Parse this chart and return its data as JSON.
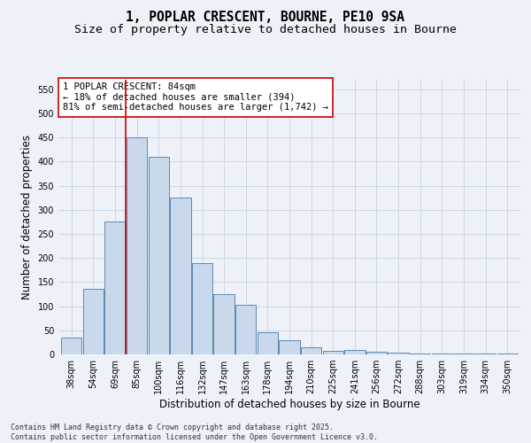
{
  "title_line1": "1, POPLAR CRESCENT, BOURNE, PE10 9SA",
  "title_line2": "Size of property relative to detached houses in Bourne",
  "xlabel": "Distribution of detached houses by size in Bourne",
  "ylabel": "Number of detached properties",
  "categories": [
    "38sqm",
    "54sqm",
    "69sqm",
    "85sqm",
    "100sqm",
    "116sqm",
    "132sqm",
    "147sqm",
    "163sqm",
    "178sqm",
    "194sqm",
    "210sqm",
    "225sqm",
    "241sqm",
    "256sqm",
    "272sqm",
    "288sqm",
    "303sqm",
    "319sqm",
    "334sqm",
    "350sqm"
  ],
  "bar_values": [
    35,
    136,
    275,
    450,
    410,
    325,
    190,
    125,
    103,
    46,
    30,
    15,
    8,
    10,
    5,
    4,
    2,
    2,
    2,
    2,
    2
  ],
  "bar_color": "#c9d9eb",
  "bar_edge_color": "#5b8ab5",
  "grid_color": "#c8d8e8",
  "background_color": "#eef2f8",
  "vline_color": "#cc0000",
  "annotation_text": "1 POPLAR CRESCENT: 84sqm\n← 18% of detached houses are smaller (394)\n81% of semi-detached houses are larger (1,742) →",
  "annotation_box_color": "#ffffff",
  "annotation_box_edge": "#cc0000",
  "ylim": [
    0,
    570
  ],
  "yticks": [
    0,
    50,
    100,
    150,
    200,
    250,
    300,
    350,
    400,
    450,
    500,
    550
  ],
  "footnote": "Contains HM Land Registry data © Crown copyright and database right 2025.\nContains public sector information licensed under the Open Government Licence v3.0.",
  "title_fontsize": 10.5,
  "subtitle_fontsize": 9.5,
  "label_fontsize": 8.5,
  "tick_fontsize": 7,
  "annot_fontsize": 7.5,
  "footnote_fontsize": 6
}
